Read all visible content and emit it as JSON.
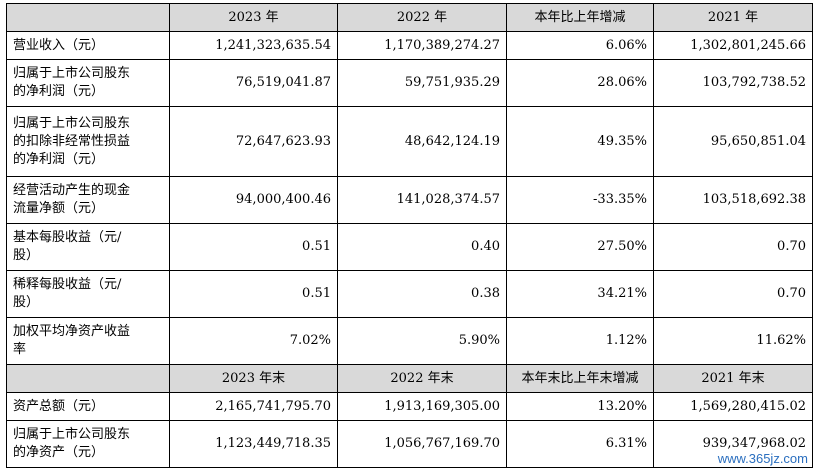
{
  "header1": [
    "",
    "2023 年",
    "2022 年",
    "本年比上年增减",
    "2021 年"
  ],
  "rows1": [
    {
      "label": [
        "营业收入（元）"
      ],
      "values": [
        "1,241,323,635.54",
        "1,170,389,274.27",
        "6.06%",
        "1,302,801,245.66"
      ]
    },
    {
      "label": [
        "归属于上市公司股东",
        "的净利润（元）"
      ],
      "values": [
        "76,519,041.87",
        "59,751,935.29",
        "28.06%",
        "103,792,738.52"
      ]
    },
    {
      "label": [
        "归属于上市公司股东",
        "的扣除非经常性损益",
        "的净利润（元）"
      ],
      "values": [
        "72,647,623.93",
        "48,642,124.19",
        "49.35%",
        "95,650,851.04"
      ]
    },
    {
      "label": [
        "经营活动产生的现金",
        "流量净额（元）"
      ],
      "values": [
        "94,000,400.46",
        "141,028,374.57",
        "-33.35%",
        "103,518,692.38"
      ]
    },
    {
      "label": [
        "基本每股收益（元/",
        "股）"
      ],
      "values": [
        "0.51",
        "0.40",
        "27.50%",
        "0.70"
      ]
    },
    {
      "label": [
        "稀释每股收益（元/",
        "股）"
      ],
      "values": [
        "0.51",
        "0.38",
        "34.21%",
        "0.70"
      ]
    },
    {
      "label": [
        "加权平均净资产收益",
        "率"
      ],
      "values": [
        "7.02%",
        "5.90%",
        "1.12%",
        "11.62%"
      ]
    }
  ],
  "header2": [
    "",
    "2023 年末",
    "2022 年末",
    "本年末比上年末增减",
    "2021 年末"
  ],
  "rows2": [
    {
      "label": [
        "资产总额（元）"
      ],
      "values": [
        "2,165,741,795.70",
        "1,913,169,305.00",
        "13.20%",
        "1,569,280,415.02"
      ]
    },
    {
      "label": [
        "归属于上市公司股东",
        "的净资产（元）"
      ],
      "values": [
        "1,123,449,718.35",
        "1,056,767,169.70",
        "6.31%",
        "939,347,968.02"
      ]
    }
  ],
  "watermark": "www.365jz.com"
}
